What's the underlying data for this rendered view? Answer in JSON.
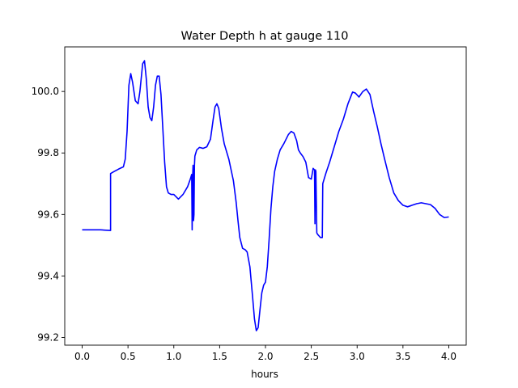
{
  "chart_data": {
    "type": "line",
    "title": "Water Depth h at gauge 110",
    "xlabel": "hours",
    "ylabel": "",
    "xlim": [
      -0.19,
      4.19
    ],
    "ylim": [
      99.175,
      100.145
    ],
    "xticks": [
      0.0,
      0.5,
      1.0,
      1.5,
      2.0,
      2.5,
      3.0,
      3.5,
      4.0
    ],
    "xtick_labels": [
      "0.0",
      "0.5",
      "1.0",
      "1.5",
      "2.0",
      "2.5",
      "3.0",
      "3.5",
      "4.0"
    ],
    "yticks": [
      99.2,
      99.4,
      99.6,
      99.8,
      100.0
    ],
    "ytick_labels": [
      "99.2",
      "99.4",
      "99.6",
      "99.8",
      "100.0"
    ],
    "grid": false,
    "series": [
      {
        "color": "#0000ff",
        "x": [
          0.0,
          0.1,
          0.2,
          0.3,
          0.31,
          0.31,
          0.35,
          0.4,
          0.45,
          0.47,
          0.49,
          0.51,
          0.53,
          0.55,
          0.58,
          0.61,
          0.63,
          0.66,
          0.68,
          0.7,
          0.72,
          0.74,
          0.76,
          0.78,
          0.8,
          0.82,
          0.84,
          0.86,
          0.88,
          0.9,
          0.92,
          0.94,
          0.97,
          1.0,
          1.05,
          1.1,
          1.15,
          1.18,
          1.195,
          1.2,
          1.205,
          1.21,
          1.215,
          1.22,
          1.225,
          1.23,
          1.24,
          1.25,
          1.28,
          1.32,
          1.36,
          1.4,
          1.43,
          1.45,
          1.47,
          1.49,
          1.52,
          1.55,
          1.6,
          1.65,
          1.68,
          1.7,
          1.72,
          1.75,
          1.78,
          1.8,
          1.83,
          1.86,
          1.88,
          1.9,
          1.92,
          1.94,
          1.96,
          1.98,
          2.0,
          2.02,
          2.04,
          2.06,
          2.08,
          2.1,
          2.13,
          2.16,
          2.2,
          2.25,
          2.28,
          2.31,
          2.34,
          2.36,
          2.38,
          2.41,
          2.44,
          2.47,
          2.5,
          2.52,
          2.535,
          2.54,
          2.545,
          2.55,
          2.56,
          2.57,
          2.6,
          2.62,
          2.625,
          2.63,
          2.66,
          2.7,
          2.75,
          2.8,
          2.85,
          2.9,
          2.95,
          2.98,
          3.02,
          3.06,
          3.1,
          3.14,
          3.18,
          3.22,
          3.26,
          3.3,
          3.35,
          3.4,
          3.45,
          3.5,
          3.55,
          3.6,
          3.65,
          3.7,
          3.75,
          3.8,
          3.85,
          3.9,
          3.95,
          4.0
        ],
        "y": [
          99.55,
          99.55,
          99.55,
          99.548,
          99.548,
          99.733,
          99.74,
          99.748,
          99.755,
          99.78,
          99.87,
          100.02,
          100.058,
          100.03,
          99.97,
          99.96,
          100.0,
          100.09,
          100.1,
          100.04,
          99.95,
          99.915,
          99.905,
          99.95,
          100.02,
          100.05,
          100.05,
          99.99,
          99.88,
          99.77,
          99.69,
          99.67,
          99.665,
          99.665,
          99.65,
          99.665,
          99.69,
          99.715,
          99.73,
          99.55,
          99.72,
          99.76,
          99.58,
          99.6,
          99.76,
          99.79,
          99.8,
          99.81,
          99.818,
          99.815,
          99.82,
          99.845,
          99.91,
          99.95,
          99.96,
          99.945,
          99.88,
          99.83,
          99.78,
          99.71,
          99.64,
          99.58,
          99.525,
          99.49,
          99.485,
          99.478,
          99.43,
          99.33,
          99.26,
          99.222,
          99.232,
          99.29,
          99.345,
          99.37,
          99.38,
          99.43,
          99.52,
          99.62,
          99.69,
          99.74,
          99.78,
          99.81,
          99.83,
          99.86,
          99.87,
          99.865,
          99.84,
          99.81,
          99.8,
          99.788,
          99.77,
          99.72,
          99.715,
          99.75,
          99.745,
          99.57,
          99.745,
          99.74,
          99.54,
          99.535,
          99.525,
          99.525,
          99.7,
          99.705,
          99.735,
          99.77,
          99.82,
          99.87,
          99.91,
          99.96,
          99.998,
          99.995,
          99.982,
          99.999,
          100.008,
          99.99,
          99.935,
          99.885,
          99.83,
          99.78,
          99.72,
          99.67,
          99.645,
          99.63,
          99.625,
          99.63,
          99.635,
          99.638,
          99.635,
          99.632,
          99.62,
          99.6,
          99.59,
          99.592
        ]
      }
    ]
  }
}
